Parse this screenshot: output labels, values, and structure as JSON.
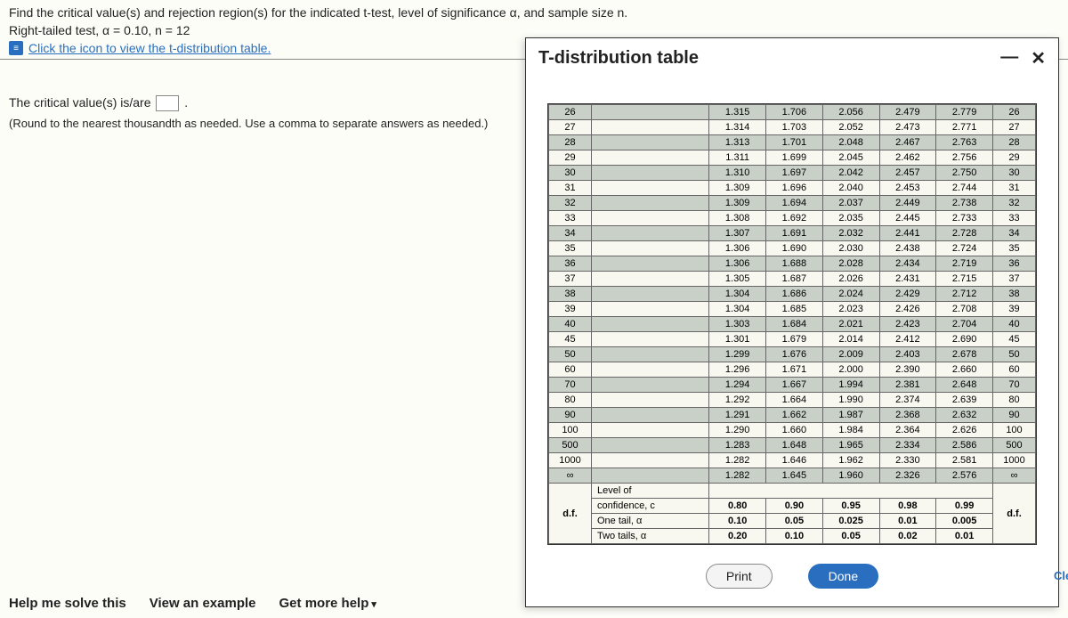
{
  "question": {
    "line1": "Find the critical value(s) and rejection region(s) for the indicated t-test, level of significance α, and sample size n.",
    "line2": "Right-tailed test, α = 0.10, n = 12",
    "link_label": "Click the icon to view the t-distribution table."
  },
  "answer": {
    "line1_prefix": "The critical value(s) is/are ",
    "line1_suffix": ".",
    "instruction": "(Round to the nearest thousandth as needed. Use a comma to separate answers as needed.)"
  },
  "bottom": {
    "help": "Help me solve this",
    "view": "View an example",
    "more": "Get more help"
  },
  "popup": {
    "title": "T-distribution table",
    "minimize": "—",
    "close": "✕",
    "print": "Print",
    "done": "Done"
  },
  "side": {
    "clear": "Clea"
  },
  "table": {
    "rows": [
      {
        "df": "26",
        "v": [
          "1.315",
          "1.706",
          "2.056",
          "2.479",
          "2.779"
        ],
        "r": "26",
        "s": true
      },
      {
        "df": "27",
        "v": [
          "1.314",
          "1.703",
          "2.052",
          "2.473",
          "2.771"
        ],
        "r": "27",
        "s": false
      },
      {
        "df": "28",
        "v": [
          "1.313",
          "1.701",
          "2.048",
          "2.467",
          "2.763"
        ],
        "r": "28",
        "s": true
      },
      {
        "df": "29",
        "v": [
          "1.311",
          "1.699",
          "2.045",
          "2.462",
          "2.756"
        ],
        "r": "29",
        "s": false
      },
      {
        "df": "30",
        "v": [
          "1.310",
          "1.697",
          "2.042",
          "2.457",
          "2.750"
        ],
        "r": "30",
        "s": true
      },
      {
        "df": "31",
        "v": [
          "1.309",
          "1.696",
          "2.040",
          "2.453",
          "2.744"
        ],
        "r": "31",
        "s": false
      },
      {
        "df": "32",
        "v": [
          "1.309",
          "1.694",
          "2.037",
          "2.449",
          "2.738"
        ],
        "r": "32",
        "s": true
      },
      {
        "df": "33",
        "v": [
          "1.308",
          "1.692",
          "2.035",
          "2.445",
          "2.733"
        ],
        "r": "33",
        "s": false
      },
      {
        "df": "34",
        "v": [
          "1.307",
          "1.691",
          "2.032",
          "2.441",
          "2.728"
        ],
        "r": "34",
        "s": true
      },
      {
        "df": "35",
        "v": [
          "1.306",
          "1.690",
          "2.030",
          "2.438",
          "2.724"
        ],
        "r": "35",
        "s": false
      },
      {
        "df": "36",
        "v": [
          "1.306",
          "1.688",
          "2.028",
          "2.434",
          "2.719"
        ],
        "r": "36",
        "s": true
      },
      {
        "df": "37",
        "v": [
          "1.305",
          "1.687",
          "2.026",
          "2.431",
          "2.715"
        ],
        "r": "37",
        "s": false
      },
      {
        "df": "38",
        "v": [
          "1.304",
          "1.686",
          "2.024",
          "2.429",
          "2.712"
        ],
        "r": "38",
        "s": true
      },
      {
        "df": "39",
        "v": [
          "1.304",
          "1.685",
          "2.023",
          "2.426",
          "2.708"
        ],
        "r": "39",
        "s": false
      },
      {
        "df": "40",
        "v": [
          "1.303",
          "1.684",
          "2.021",
          "2.423",
          "2.704"
        ],
        "r": "40",
        "s": true
      },
      {
        "df": "45",
        "v": [
          "1.301",
          "1.679",
          "2.014",
          "2.412",
          "2.690"
        ],
        "r": "45",
        "s": false
      },
      {
        "df": "50",
        "v": [
          "1.299",
          "1.676",
          "2.009",
          "2.403",
          "2.678"
        ],
        "r": "50",
        "s": true
      },
      {
        "df": "60",
        "v": [
          "1.296",
          "1.671",
          "2.000",
          "2.390",
          "2.660"
        ],
        "r": "60",
        "s": false
      },
      {
        "df": "70",
        "v": [
          "1.294",
          "1.667",
          "1.994",
          "2.381",
          "2.648"
        ],
        "r": "70",
        "s": true
      },
      {
        "df": "80",
        "v": [
          "1.292",
          "1.664",
          "1.990",
          "2.374",
          "2.639"
        ],
        "r": "80",
        "s": false
      },
      {
        "df": "90",
        "v": [
          "1.291",
          "1.662",
          "1.987",
          "2.368",
          "2.632"
        ],
        "r": "90",
        "s": true
      },
      {
        "df": "100",
        "v": [
          "1.290",
          "1.660",
          "1.984",
          "2.364",
          "2.626"
        ],
        "r": "100",
        "s": false
      },
      {
        "df": "500",
        "v": [
          "1.283",
          "1.648",
          "1.965",
          "2.334",
          "2.586"
        ],
        "r": "500",
        "s": true
      },
      {
        "df": "1000",
        "v": [
          "1.282",
          "1.646",
          "1.962",
          "2.330",
          "2.581"
        ],
        "r": "1000",
        "s": false
      },
      {
        "df": "∞",
        "v": [
          "1.282",
          "1.645",
          "1.960",
          "2.326",
          "2.576"
        ],
        "r": "∞",
        "s": true
      }
    ],
    "footer": {
      "df_label": "d.f.",
      "level_label": "Level of",
      "conf_label": "confidence, c",
      "one_label": "One tail, α",
      "two_label": "Two tails, α",
      "conf_vals": [
        "0.80",
        "0.90",
        "0.95",
        "0.98",
        "0.99"
      ],
      "one_vals": [
        "0.10",
        "0.05",
        "0.025",
        "0.01",
        "0.005"
      ],
      "two_vals": [
        "0.20",
        "0.10",
        "0.05",
        "0.02",
        "0.01"
      ],
      "df_label_r": "d.f."
    }
  }
}
